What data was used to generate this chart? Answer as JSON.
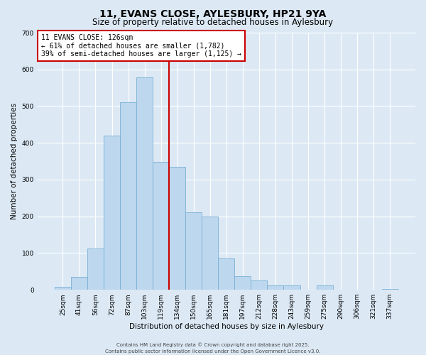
{
  "title": "11, EVANS CLOSE, AYLESBURY, HP21 9YA",
  "subtitle": "Size of property relative to detached houses in Aylesbury",
  "xlabel": "Distribution of detached houses by size in Aylesbury",
  "ylabel": "Number of detached properties",
  "bar_labels": [
    "25sqm",
    "41sqm",
    "56sqm",
    "72sqm",
    "87sqm",
    "103sqm",
    "119sqm",
    "134sqm",
    "150sqm",
    "165sqm",
    "181sqm",
    "197sqm",
    "212sqm",
    "228sqm",
    "243sqm",
    "259sqm",
    "275sqm",
    "290sqm",
    "306sqm",
    "321sqm",
    "337sqm"
  ],
  "bar_values": [
    8,
    35,
    113,
    420,
    510,
    578,
    348,
    335,
    211,
    200,
    85,
    37,
    25,
    12,
    12,
    0,
    12,
    0,
    0,
    0,
    2
  ],
  "bar_color": "#bdd7ee",
  "bar_edge_color": "#7ab0d4",
  "vline_color": "#cc0000",
  "vline_position": 6.5,
  "ylim": [
    0,
    700
  ],
  "yticks": [
    0,
    100,
    200,
    300,
    400,
    500,
    600,
    700
  ],
  "annotation_title": "11 EVANS CLOSE: 126sqm",
  "annotation_line1": "← 61% of detached houses are smaller (1,782)",
  "annotation_line2": "39% of semi-detached houses are larger (1,125) →",
  "annotation_box_facecolor": "#ffffff",
  "annotation_box_edgecolor": "#cc0000",
  "footer1": "Contains HM Land Registry data © Crown copyright and database right 2025.",
  "footer2": "Contains public sector information licensed under the Open Government Licence v3.0.",
  "background_color": "#dce9f5",
  "grid_color": "#ffffff",
  "title_fontsize": 10,
  "subtitle_fontsize": 8.5,
  "axis_label_fontsize": 7.5,
  "tick_fontsize": 6.5,
  "annotation_fontsize": 7,
  "footer_fontsize": 5
}
